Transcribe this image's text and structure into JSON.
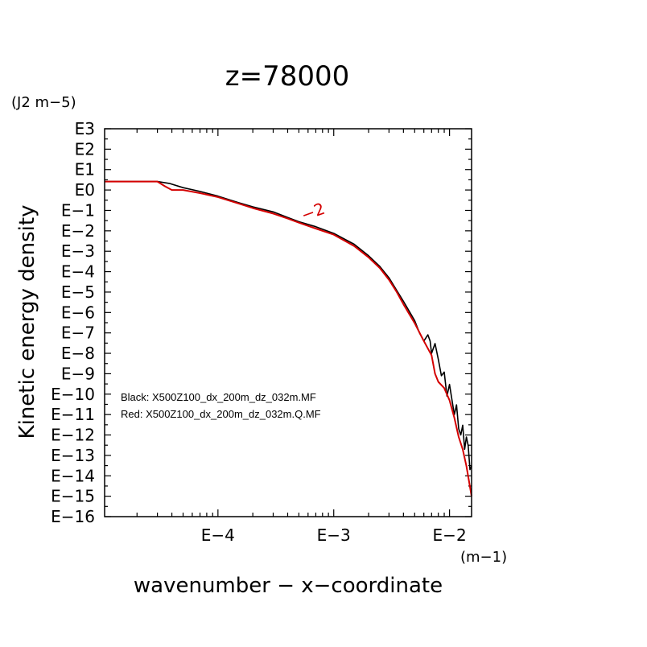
{
  "chart_data": {
    "type": "line",
    "title": "z=78000",
    "xlabel": "wavenumber − x−coordinate",
    "ylabel": "Kinetic energy density",
    "x_unit": "(m−1)",
    "y_unit": "(J2 m−5)",
    "x_scale": "log",
    "y_scale": "log",
    "xlim": [
      1.05e-05,
      0.0155
    ],
    "ylim": [
      1e-16,
      1000
    ],
    "x_ticks": [
      {
        "value": 0.0001,
        "label": "E−4"
      },
      {
        "value": 0.001,
        "label": "E−3"
      },
      {
        "value": 0.01,
        "label": "E−2"
      }
    ],
    "y_ticks": [
      {
        "value": 1000,
        "label": "E3"
      },
      {
        "value": 100,
        "label": "E2"
      },
      {
        "value": 10,
        "label": "E1"
      },
      {
        "value": 1,
        "label": "E0"
      },
      {
        "value": 0.1,
        "label": "E−1"
      },
      {
        "value": 0.01,
        "label": "E−2"
      },
      {
        "value": 0.001,
        "label": "E−3"
      },
      {
        "value": 0.0001,
        "label": "E−4"
      },
      {
        "value": 1e-05,
        "label": "E−5"
      },
      {
        "value": 1e-06,
        "label": "E−6"
      },
      {
        "value": 1e-07,
        "label": "E−7"
      },
      {
        "value": 1e-08,
        "label": "E−8"
      },
      {
        "value": 1e-09,
        "label": "E−9"
      },
      {
        "value": 1e-10,
        "label": "E−10"
      },
      {
        "value": 1e-11,
        "label": "E−11"
      },
      {
        "value": 1e-12,
        "label": "E−12"
      },
      {
        "value": 1e-13,
        "label": "E−13"
      },
      {
        "value": 1e-14,
        "label": "E−14"
      },
      {
        "value": 1e-15,
        "label": "E−15"
      },
      {
        "value": 1e-16,
        "label": "E−16"
      }
    ],
    "grid": false,
    "legend_position": "bottom-left",
    "legend": [
      "Black: X500Z100_dx_200m_dz_032m.MF",
      "Red: X500Z100_dx_200m_dz_032m.Q.MF"
    ],
    "annotations": [
      {
        "text": "−2",
        "x": 0.00055,
        "y": 0.03
      }
    ],
    "series": [
      {
        "color": "#000000",
        "points": [
          [
            1.05e-05,
            2.6
          ],
          [
            3e-05,
            2.6
          ],
          [
            3.8e-05,
            2.1
          ],
          [
            5e-05,
            1.3
          ],
          [
            7e-05,
            0.85
          ],
          [
            0.0001,
            0.5
          ],
          [
            0.00015,
            0.24
          ],
          [
            0.0002,
            0.15
          ],
          [
            0.0003,
            0.085
          ],
          [
            0.0004,
            0.045
          ],
          [
            0.0005,
            0.028
          ],
          [
            0.0007,
            0.016
          ],
          [
            0.001,
            0.0075
          ],
          [
            0.0015,
            0.0022
          ],
          [
            0.002,
            0.0006
          ],
          [
            0.0025,
            0.00018
          ],
          [
            0.003,
            5e-05
          ],
          [
            0.0035,
            1.2e-05
          ],
          [
            0.004,
            3.5e-06
          ],
          [
            0.005,
            4e-07
          ],
          [
            0.0055,
            1e-07
          ],
          [
            0.006,
            4e-08
          ],
          [
            0.0065,
            8e-08
          ],
          [
            0.0068,
            4e-08
          ],
          [
            0.007,
            1e-08
          ],
          [
            0.0075,
            3e-08
          ],
          [
            0.008,
            5e-09
          ],
          [
            0.0085,
            8e-10
          ],
          [
            0.009,
            1.2e-09
          ],
          [
            0.0095,
            8e-11
          ],
          [
            0.01,
            3e-10
          ],
          [
            0.0105,
            5e-11
          ],
          [
            0.011,
            1e-11
          ],
          [
            0.0115,
            3e-11
          ],
          [
            0.012,
            2e-12
          ],
          [
            0.0125,
            1e-12
          ],
          [
            0.013,
            3e-12
          ],
          [
            0.0135,
            2e-13
          ],
          [
            0.014,
            8e-13
          ],
          [
            0.0145,
            3e-13
          ],
          [
            0.015,
            2e-14
          ],
          [
            0.0155,
            3e-14
          ]
        ]
      },
      {
        "color": "#d40000",
        "points": [
          [
            1.05e-05,
            2.6
          ],
          [
            3e-05,
            2.6
          ],
          [
            3.5e-05,
            1.5
          ],
          [
            4e-05,
            1.0
          ],
          [
            5e-05,
            1.0
          ],
          [
            7e-05,
            0.7
          ],
          [
            0.0001,
            0.45
          ],
          [
            0.00015,
            0.22
          ],
          [
            0.0002,
            0.13
          ],
          [
            0.0003,
            0.07
          ],
          [
            0.0004,
            0.04
          ],
          [
            0.0005,
            0.025
          ],
          [
            0.0007,
            0.013
          ],
          [
            0.001,
            0.0065
          ],
          [
            0.0015,
            0.0018
          ],
          [
            0.002,
            0.0005
          ],
          [
            0.0025,
            0.00015
          ],
          [
            0.003,
            4e-05
          ],
          [
            0.0035,
            1e-05
          ],
          [
            0.004,
            2.5e-06
          ],
          [
            0.005,
            3e-07
          ],
          [
            0.006,
            4e-08
          ],
          [
            0.007,
            8e-09
          ],
          [
            0.0075,
            1e-09
          ],
          [
            0.008,
            4e-10
          ],
          [
            0.009,
            2e-10
          ],
          [
            0.01,
            5e-11
          ],
          [
            0.011,
            7e-12
          ],
          [
            0.012,
            8e-13
          ],
          [
            0.013,
            2e-13
          ],
          [
            0.014,
            3e-14
          ],
          [
            0.0155,
            1e-15
          ]
        ]
      }
    ]
  }
}
